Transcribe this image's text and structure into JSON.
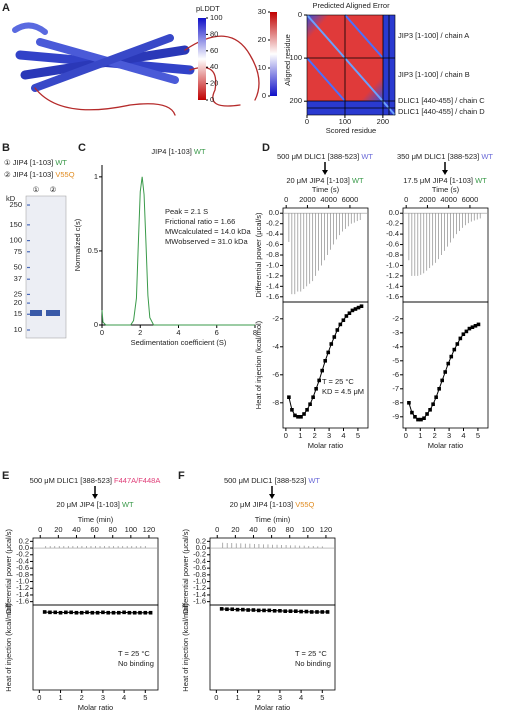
{
  "panel_labels": [
    "A",
    "B",
    "C",
    "D",
    "E",
    "F"
  ],
  "structure": {
    "colorbar_label": "pLDDT",
    "colorbar_ticks": [
      0,
      20,
      40,
      60,
      80,
      100
    ]
  },
  "pae": {
    "title": "Predicted Aligned Error",
    "colorbar_ticks": [
      0,
      10,
      20,
      30
    ],
    "xlabel": "Scored residue",
    "ylabel": "Aligned residue",
    "ticks": [
      0,
      100,
      200
    ],
    "chains": [
      "JIP3 [1-100] / chain A",
      "JIP3 [1-100] / chain B",
      "DLIC1 [440-455] / chain C",
      "DLIC1 [440-455] / chain D"
    ]
  },
  "gel": {
    "unit": "kD",
    "lanes": [
      "①",
      "②"
    ],
    "markers": [
      250,
      150,
      100,
      75,
      50,
      37,
      25,
      20,
      15,
      10
    ],
    "samples": [
      [
        {
          "text": "① JIP4 [1-103] "
        },
        {
          "text": "WT",
          "color": "#3a9a4a"
        }
      ],
      [
        {
          "text": "② JIP4 [1-103] "
        },
        {
          "text": "V55Q",
          "color": "#e08a1e"
        }
      ]
    ]
  },
  "itc_headers": [
    {
      "syringe": [
        {
          "text": "500 μM DLIC1 [388-523] "
        },
        {
          "text": "WT",
          "color": "#6a6ad8"
        }
      ],
      "cell": [
        {
          "text": "20 μM JIP4 [1-103] "
        },
        {
          "text": "WT",
          "color": "#3a9a4a"
        }
      ]
    },
    {
      "syringe": [
        {
          "text": "350 μM DLIC1 [388-523] "
        },
        {
          "text": "WT",
          "color": "#6a6ad8"
        }
      ],
      "cell": [
        {
          "text": "17.5 μM JIP4 [1-103] "
        },
        {
          "text": "WT",
          "color": "#3a9a4a"
        }
      ]
    },
    {
      "syringe": [
        {
          "text": "500 μM DLIC1 [388-523] "
        },
        {
          "text": "F447A/F448A",
          "color": "#e0407a"
        }
      ],
      "cell": [
        {
          "text": "20 μM JIP4 [1-103] "
        },
        {
          "text": "WT",
          "color": "#3a9a4a"
        }
      ]
    },
    {
      "syringe": [
        {
          "text": "500 μM DLIC1 [388-523] "
        },
        {
          "text": "WT",
          "color": "#6a6ad8"
        }
      ],
      "cell": [
        {
          "text": "20 μM JIP4 [1-103] "
        },
        {
          "text": "V55Q",
          "color": "#e08a1e"
        }
      ]
    }
  ],
  "chart_data": [
    {
      "type": "line",
      "title": [
        {
          "text": "JIP4 [1-103] "
        },
        {
          "text": "WT",
          "color": "#3a9a4a"
        }
      ],
      "color": "#3a9a4a",
      "xlabel": "Sedimentation coefficient (S)",
      "ylabel": "Normalized c(s)",
      "x": [
        0,
        0.05,
        0.2,
        1,
        1.5,
        1.65,
        1.8,
        1.9,
        2.0,
        2.1,
        2.2,
        2.3,
        2.4,
        2.5,
        2.7,
        3,
        8
      ],
      "values": [
        0.1,
        0.02,
        0,
        0,
        0,
        0.03,
        0.18,
        0.55,
        0.9,
        1,
        0.88,
        0.55,
        0.2,
        0.05,
        0,
        0,
        0
      ],
      "xlim": [
        0,
        8
      ],
      "xticks": [
        0,
        2,
        4,
        6,
        8
      ],
      "ylim": [
        0,
        1.08
      ],
      "yticks": [
        0,
        0.5,
        1
      ],
      "annotations": [
        "Peak = 2.1 S",
        "Frictional ratio = 1.66",
        "MWcalculated = 14.0 kDa",
        "MWobserved = 31.0 kDa"
      ]
    },
    {
      "type": "bar",
      "box": true,
      "x_axis": "top",
      "color": "#999",
      "xlabel": "Time (s)",
      "ylabel": "Differential power (μcal/s)",
      "x": [
        250,
        530,
        810,
        1090,
        1370,
        1650,
        1930,
        2210,
        2490,
        2770,
        3050,
        3330,
        3610,
        3890,
        4170,
        4450,
        4730,
        5010,
        5290,
        5570,
        5850,
        6130,
        6410,
        6690,
        6970
      ],
      "values": [
        -0.55,
        -1.55,
        -1.55,
        -1.5,
        -1.5,
        -1.45,
        -1.4,
        -1.35,
        -1.3,
        -1.2,
        -1.1,
        -1.0,
        -0.9,
        -0.8,
        -0.7,
        -0.6,
        -0.5,
        -0.42,
        -0.35,
        -0.3,
        -0.25,
        -0.2,
        -0.18,
        -0.15,
        -0.13
      ],
      "xlim": [
        -300,
        7700
      ],
      "xticks": [
        0,
        2000,
        4000,
        6000
      ],
      "ylim": [
        -1.7,
        0.1
      ],
      "yticks": [
        {
          "value": 0,
          "label": "0.0"
        },
        -0.2,
        -0.4,
        -0.6,
        -0.8,
        {
          "value": -1,
          "label": "-1.0"
        },
        -1.2,
        -1.4,
        -1.6
      ]
    },
    {
      "type": "line",
      "box": true,
      "markers": true,
      "color": "#000",
      "xlabel": "Molar ratio",
      "ylabel": "Heat of injection (kcal/mol)",
      "x": [
        0.21,
        0.42,
        0.63,
        0.84,
        1.05,
        1.26,
        1.47,
        1.68,
        1.89,
        2.1,
        2.31,
        2.52,
        2.73,
        2.94,
        3.15,
        3.36,
        3.57,
        3.78,
        3.99,
        4.2,
        4.41,
        4.62,
        4.83,
        5.04,
        5.25
      ],
      "values": [
        -7.6,
        -8.5,
        -8.9,
        -9.0,
        -9.0,
        -8.8,
        -8.5,
        -8.1,
        -7.6,
        -7.0,
        -6.4,
        -5.7,
        -5.0,
        -4.4,
        -3.8,
        -3.3,
        -2.8,
        -2.4,
        -2.1,
        -1.8,
        -1.6,
        -1.4,
        -1.3,
        -1.2,
        -1.1
      ],
      "xlim": [
        -0.2,
        5.7
      ],
      "xticks": [
        0,
        1,
        2,
        3,
        4,
        5
      ],
      "ylim": [
        -9.8,
        -0.8
      ],
      "yticks": [
        -2,
        -4,
        -6,
        -8
      ],
      "annotations": [
        "T = 25 °C",
        "KD = 4.5 μM"
      ]
    },
    {
      "type": "bar",
      "box": true,
      "x_axis": "top",
      "color": "#999",
      "xlabel": "Time (s)",
      "x": [
        250,
        530,
        810,
        1090,
        1370,
        1650,
        1930,
        2210,
        2490,
        2770,
        3050,
        3330,
        3610,
        3890,
        4170,
        4450,
        4730,
        5010,
        5290,
        5570,
        5850,
        6130,
        6410,
        6690,
        6970
      ],
      "values": [
        -0.9,
        -1.2,
        -1.2,
        -1.2,
        -1.18,
        -1.15,
        -1.1,
        -1.05,
        -1.0,
        -0.95,
        -0.88,
        -0.8,
        -0.72,
        -0.64,
        -0.56,
        -0.48,
        -0.4,
        -0.34,
        -0.28,
        -0.23,
        -0.19,
        -0.16,
        -0.14,
        -0.12,
        -0.1
      ],
      "xlim": [
        -300,
        7700
      ],
      "xticks": [
        0,
        2000,
        4000,
        6000
      ],
      "ylim": [
        -1.7,
        0.1
      ],
      "yticks": [
        {
          "value": 0,
          "label": "0.0"
        },
        -0.2,
        -0.4,
        -0.6,
        -0.8,
        {
          "value": -1,
          "label": "-1.0"
        },
        -1.2,
        -1.4,
        -1.6
      ]
    },
    {
      "type": "line",
      "box": true,
      "markers": true,
      "color": "#000",
      "xlabel": "Molar ratio",
      "x": [
        0.21,
        0.42,
        0.63,
        0.84,
        1.05,
        1.26,
        1.47,
        1.68,
        1.89,
        2.1,
        2.31,
        2.52,
        2.73,
        2.94,
        3.15,
        3.36,
        3.57,
        3.78,
        3.99,
        4.2,
        4.41,
        4.62,
        4.83,
        5.04
      ],
      "values": [
        -8.0,
        -8.7,
        -9.0,
        -9.2,
        -9.2,
        -9.1,
        -8.8,
        -8.5,
        -8.1,
        -7.6,
        -7.0,
        -6.4,
        -5.8,
        -5.2,
        -4.7,
        -4.2,
        -3.8,
        -3.4,
        -3.1,
        -2.9,
        -2.7,
        -2.6,
        -2.5,
        -2.4
      ],
      "xlim": [
        -0.2,
        5.7
      ],
      "xticks": [
        0,
        1,
        2,
        3,
        4,
        5
      ],
      "ylim": [
        -9.8,
        -0.8
      ],
      "yticks": [
        -2,
        -3,
        -4,
        -5,
        -6,
        -7,
        -8,
        -9
      ]
    },
    {
      "type": "bar",
      "box": true,
      "x_axis": "top",
      "color": "#999",
      "xlabel": "Time (min)",
      "ylabel": "Differential power (μcal/s)",
      "x": [
        6,
        11,
        16,
        21,
        26,
        31,
        36,
        41,
        46,
        51,
        56,
        61,
        66,
        71,
        76,
        81,
        86,
        91,
        96,
        101,
        106,
        111,
        116
      ],
      "values": [
        0.06,
        0.06,
        0.06,
        0.06,
        0.06,
        0.06,
        0.06,
        0.06,
        0.06,
        0.06,
        0.06,
        0.06,
        0.06,
        0.06,
        0.06,
        0.06,
        0.06,
        0.06,
        0.06,
        0.06,
        0.06,
        0.06,
        0.06
      ],
      "xlim": [
        -8,
        130
      ],
      "xticks": [
        0,
        20,
        40,
        60,
        80,
        100,
        120
      ],
      "ylim": [
        -1.7,
        0.3
      ],
      "yticks": [
        0.2,
        {
          "value": 0,
          "label": "0.0"
        },
        -0.2,
        -0.4,
        -0.6,
        -0.8,
        {
          "value": -1,
          "label": "-1.0"
        },
        -1.2,
        -1.4,
        -1.6
      ]
    },
    {
      "type": "line",
      "box": true,
      "markers": true,
      "color": "#000",
      "xlabel": "Molar ratio",
      "ylabel": "Heat of injection (kcal/mol)",
      "x": [
        0.25,
        0.5,
        0.75,
        1,
        1.25,
        1.5,
        1.75,
        2,
        2.25,
        2.5,
        2.75,
        3,
        3.25,
        3.5,
        3.75,
        4,
        4.25,
        4.5,
        4.75,
        5,
        5.25
      ],
      "values": [
        0.1,
        0.05,
        0.05,
        0,
        0.05,
        0.05,
        0,
        0,
        0.05,
        0,
        0,
        0.05,
        0,
        0,
        0,
        0.05,
        0,
        0,
        0,
        0,
        0
      ],
      "xlim": [
        -0.3,
        5.6
      ],
      "xticks": [
        0,
        1,
        2,
        3,
        4,
        5
      ],
      "ylim": [
        -10,
        1
      ],
      "annotations": [
        "T = 25 °C",
        "No binding"
      ]
    },
    {
      "type": "bar",
      "box": true,
      "x_axis": "top",
      "color": "#999",
      "xlabel": "Time (min)",
      "ylabel": "Differential power (μcal/s)",
      "x": [
        6,
        11,
        16,
        21,
        26,
        31,
        36,
        41,
        46,
        51,
        56,
        61,
        66,
        71,
        76,
        81,
        86,
        91,
        96,
        101,
        106,
        111,
        116
      ],
      "values": [
        0.16,
        0.15,
        0.15,
        0.14,
        0.14,
        0.13,
        0.13,
        0.12,
        0.12,
        0.11,
        0.11,
        0.1,
        0.1,
        0.09,
        0.09,
        0.08,
        0.08,
        0.07,
        0.07,
        0.06,
        0.06,
        0.05,
        0.05
      ],
      "xlim": [
        -8,
        130
      ],
      "xticks": [
        0,
        20,
        40,
        60,
        80,
        100,
        120
      ],
      "ylim": [
        -1.7,
        0.3
      ],
      "yticks": [
        0.2,
        {
          "value": 0,
          "label": "0.0"
        },
        -0.2,
        -0.4,
        -0.6,
        -0.8,
        {
          "value": -1,
          "label": "-1.0"
        },
        -1.2,
        -1.4,
        -1.6
      ]
    },
    {
      "type": "line",
      "box": true,
      "markers": true,
      "color": "#000",
      "xlabel": "Molar ratio",
      "ylabel": "Heat of injection (kcal/mol)",
      "x": [
        0.25,
        0.5,
        0.75,
        1,
        1.25,
        1.5,
        1.75,
        2,
        2.25,
        2.5,
        2.75,
        3,
        3.25,
        3.5,
        3.75,
        4,
        4.25,
        4.5,
        4.75,
        5,
        5.25
      ],
      "values": [
        0.5,
        0.45,
        0.45,
        0.4,
        0.4,
        0.35,
        0.35,
        0.3,
        0.3,
        0.3,
        0.25,
        0.25,
        0.2,
        0.2,
        0.2,
        0.15,
        0.15,
        0.1,
        0.1,
        0.1,
        0.1
      ],
      "xlim": [
        -0.3,
        5.6
      ],
      "xticks": [
        0,
        1,
        2,
        3,
        4,
        5
      ],
      "ylim": [
        -10,
        1
      ],
      "annotations": [
        "T = 25 °C",
        "No binding"
      ]
    }
  ]
}
